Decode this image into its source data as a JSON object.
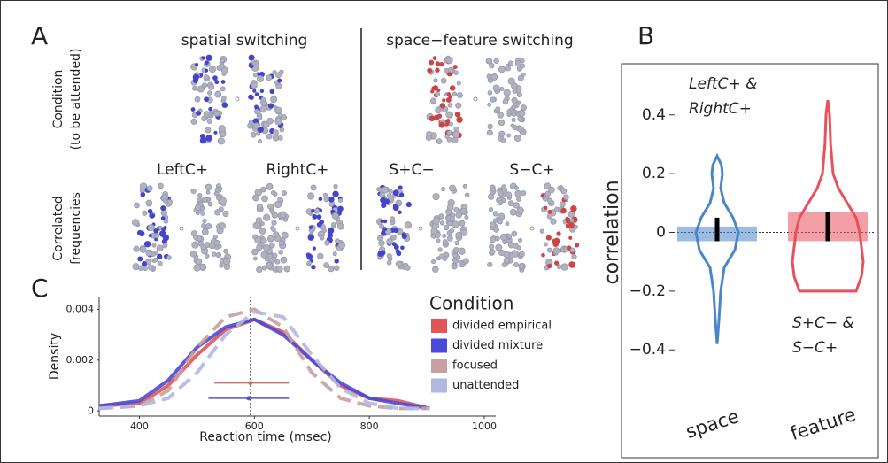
{
  "panel_a": {
    "label": "A",
    "titles": [
      "spatial switching",
      "space−feature switching"
    ],
    "row_labels": [
      [
        "Condition",
        "(to be attended)"
      ],
      [
        "Correlated",
        "frequencies"
      ]
    ],
    "condition_labels": [
      "LeftC+",
      "RightC+",
      "S+C−",
      "S−C+"
    ]
  },
  "chart_data": [
    {
      "type": "violin",
      "label": "B",
      "ylabel": "correlation",
      "categories": [
        "space",
        "feature"
      ],
      "ylim": [
        -0.55,
        0.55
      ],
      "yticks": [
        {
          "value": -0.4,
          "label": "−0.4"
        },
        {
          "value": -0.2,
          "label": "−0.2"
        },
        0,
        0.2,
        0.4
      ],
      "reference_line": 0,
      "annotations": [
        [
          "LeftC+ &",
          "RightC+"
        ],
        [
          "S+C− &",
          "S−C+"
        ]
      ],
      "series": [
        {
          "color": "#4a86c8",
          "y": [
            -0.38,
            -0.3,
            -0.2,
            -0.12,
            -0.06,
            0,
            0.05,
            0.1,
            0.15,
            0.2,
            0.23,
            0.26
          ],
          "density": [
            0,
            0.05,
            0.1,
            0.2,
            0.5,
            0.6,
            0.45,
            0.2,
            0.1,
            0.15,
            0.12,
            0
          ],
          "ci": [
            -0.03,
            0.05
          ],
          "band": [
            -0.03,
            0.02
          ]
        },
        {
          "color": "#e8505b",
          "y": [
            -0.2,
            -0.15,
            -0.1,
            -0.05,
            0,
            0.05,
            0.1,
            0.15,
            0.2,
            0.3,
            0.4,
            0.45
          ],
          "density": [
            0.8,
            0.95,
            1,
            0.95,
            0.9,
            0.8,
            0.55,
            0.3,
            0.15,
            0.08,
            0.05,
            0
          ],
          "ci": [
            -0.03,
            0.07
          ],
          "band": [
            -0.03,
            0.07
          ]
        }
      ]
    },
    {
      "type": "line",
      "label": "C",
      "xlabel": "Reaction time (msec)",
      "ylabel": "Density",
      "xlim": [
        330,
        1020
      ],
      "ylim": [
        -0.0002,
        0.0045
      ],
      "xticks": [
        400,
        600,
        800,
        1000
      ],
      "yticks": [
        0,
        0.002,
        0.004
      ],
      "reference_line": 593,
      "legend_title": "Condition",
      "x": [
        330,
        400,
        450,
        500,
        550,
        600,
        650,
        700,
        750,
        800,
        850,
        905
      ],
      "series": [
        {
          "name": "divided empirical",
          "color": "#e05555",
          "dashed": false,
          "values": [
            0.0002,
            0.0003,
            0.001,
            0.0022,
            0.0032,
            0.0036,
            0.0031,
            0.002,
            0.001,
            0.0005,
            0.0004,
            0.0001
          ]
        },
        {
          "name": "divided mixture",
          "color": "#4a4ad8",
          "dashed": false,
          "values": [
            0.0002,
            0.0004,
            0.0012,
            0.0025,
            0.0033,
            0.0036,
            0.003,
            0.002,
            0.0011,
            0.0005,
            0.0003,
            0.0001
          ]
        },
        {
          "name": "focused",
          "color": "#c9a0a0",
          "dashed": true,
          "values": [
            0.0001,
            0.0002,
            0.0008,
            0.0025,
            0.0037,
            0.004,
            0.0033,
            0.0015,
            0.0005,
            0.0002,
            0.0001,
            0.0001
          ]
        },
        {
          "name": "unattended",
          "color": "#b0b8e0",
          "dashed": true,
          "values": [
            0.0001,
            0.0002,
            0.0005,
            0.0015,
            0.003,
            0.0039,
            0.0037,
            0.0022,
            0.0009,
            0.0003,
            0.0001,
            0.0001
          ]
        }
      ],
      "error_bars": [
        {
          "color": "#c97070",
          "y": 0.0011,
          "low": 530,
          "center": 593,
          "high": 660
        },
        {
          "color": "#5555cc",
          "y": 0.0005,
          "low": 520,
          "center": 590,
          "high": 660
        }
      ]
    }
  ]
}
